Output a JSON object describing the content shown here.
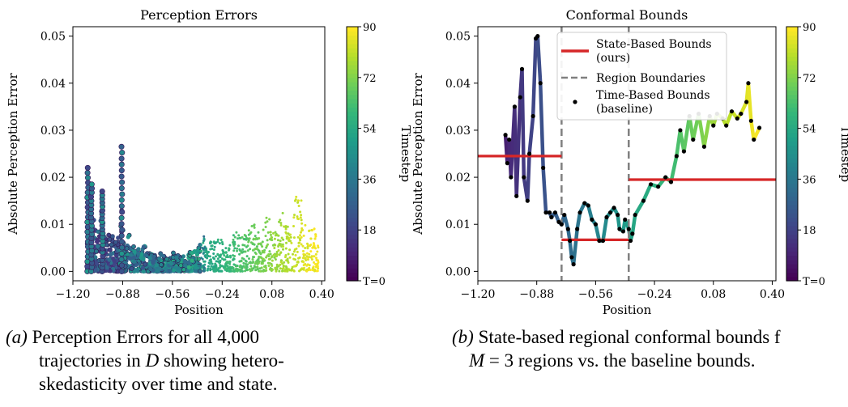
{
  "figure": {
    "panel_a": {
      "title": "Perception Errors",
      "xlabel": "Position",
      "ylabel": "Absolute Perception Error",
      "colorbar": {
        "label": "Timestep",
        "ticks": [
          "T=0",
          "18",
          "36",
          "54",
          "72",
          "90"
        ]
      }
    },
    "panel_b": {
      "title": "Conformal Bounds",
      "xlabel": "Position",
      "ylabel": "Absolute Perception Error",
      "colorbar": {
        "label": "Timestep",
        "ticks": [
          "T=0",
          "18",
          "36",
          "54",
          "72",
          "90"
        ]
      },
      "legend": {
        "state_line1": "State-Based Bounds",
        "state_line2": "(ours)",
        "region": "Region Boundaries",
        "time_line1": "Time-Based Bounds",
        "time_line2": "(baseline)"
      }
    },
    "captions": {
      "a_label": "(a)",
      "a_line1": "Perception Errors for all 4,000",
      "a_line2_pre": "trajectories in ",
      "a_line2_var": "D",
      "a_line2_post": " showing hetero-",
      "a_line3": "skedasticity over time and state.",
      "b_label": "(b)",
      "b_line1": "State-based regional conformal bounds f",
      "b_line2_var": "M",
      "b_line2_post": " = 3 regions vs. the baseline bounds."
    }
  },
  "chart_data": [
    {
      "type": "scatter",
      "title": "Perception Errors",
      "xlabel": "Position",
      "ylabel": "Absolute Perception Error",
      "xticks": [
        "−1.20",
        "−0.88",
        "−0.56",
        "−0.24",
        "0.08",
        "0.40"
      ],
      "yticks": [
        "0.00",
        "0.01",
        "0.02",
        "0.03",
        "0.04",
        "0.05"
      ],
      "xlim": [
        -1.2,
        0.42
      ],
      "ylim": [
        -0.002,
        0.052
      ],
      "colormap": "viridis",
      "color_range": [
        0,
        90
      ],
      "envelope": [
        [
          -1.11,
          0.0
        ],
        [
          -1.105,
          0.022
        ],
        [
          -1.1,
          0.016
        ],
        [
          -1.09,
          0.011
        ],
        [
          -1.08,
          0.0185
        ],
        [
          -1.07,
          0.009
        ],
        [
          -1.06,
          0.013
        ],
        [
          -1.05,
          0.007
        ],
        [
          -1.03,
          0.011
        ],
        [
          -1.01,
          0.017
        ],
        [
          -1.0,
          0.008
        ],
        [
          -0.98,
          0.011
        ],
        [
          -0.96,
          0.006
        ],
        [
          -0.94,
          0.008
        ],
        [
          -0.92,
          0.0065
        ],
        [
          -0.9,
          0.008
        ],
        [
          -0.885,
          0.0265
        ],
        [
          -0.875,
          0.01
        ],
        [
          -0.86,
          0.006
        ],
        [
          -0.84,
          0.008
        ],
        [
          -0.8,
          0.0045
        ],
        [
          -0.74,
          0.0055
        ],
        [
          -0.7,
          0.0035
        ],
        [
          -0.64,
          0.0045
        ],
        [
          -0.6,
          0.0035
        ],
        [
          -0.55,
          0.004
        ],
        [
          -0.5,
          0.003
        ],
        [
          -0.46,
          0.004
        ],
        [
          -0.4,
          0.0045
        ],
        [
          -0.36,
          0.0075
        ],
        [
          -0.3,
          0.006
        ],
        [
          -0.25,
          0.008
        ],
        [
          -0.2,
          0.0055
        ],
        [
          -0.15,
          0.009
        ],
        [
          -0.1,
          0.0075
        ],
        [
          -0.05,
          0.011
        ],
        [
          0.0,
          0.008
        ],
        [
          0.05,
          0.012
        ],
        [
          0.1,
          0.009
        ],
        [
          0.15,
          0.0125
        ],
        [
          0.2,
          0.008
        ],
        [
          0.25,
          0.02
        ],
        [
          0.3,
          0.009
        ],
        [
          0.35,
          0.0105
        ],
        [
          0.38,
          0.007
        ]
      ]
    },
    {
      "type": "line",
      "title": "Conformal Bounds",
      "xlabel": "Position",
      "ylabel": "Absolute Perception Error",
      "xticks": [
        "−1.20",
        "−0.88",
        "−0.56",
        "−0.24",
        "0.08",
        "0.40"
      ],
      "yticks": [
        "0.00",
        "0.01",
        "0.02",
        "0.03",
        "0.04",
        "0.05"
      ],
      "xlim": [
        -1.2,
        0.42
      ],
      "ylim": [
        -0.002,
        0.052
      ],
      "colormap": "viridis",
      "color_range": [
        0,
        90
      ],
      "series": [
        {
          "name": "Time-Based Bounds (baseline)",
          "points": [
            [
              -1.05,
              0.029,
              8
            ],
            [
              -1.04,
              0.023,
              9
            ],
            [
              -1.03,
              0.028,
              10
            ],
            [
              -1.02,
              0.02,
              11
            ],
            [
              -1.0,
              0.035,
              12
            ],
            [
              -0.99,
              0.016,
              13
            ],
            [
              -0.97,
              0.037,
              14
            ],
            [
              -0.96,
              0.043,
              15
            ],
            [
              -0.95,
              0.02,
              16
            ],
            [
              -0.93,
              0.015,
              17
            ],
            [
              -0.92,
              0.025,
              18
            ],
            [
              -0.9,
              0.033,
              19
            ],
            [
              -0.885,
              0.0495,
              20
            ],
            [
              -0.875,
              0.05,
              21
            ],
            [
              -0.86,
              0.04,
              22
            ],
            [
              -0.845,
              0.022,
              23
            ],
            [
              -0.83,
              0.0125,
              24
            ],
            [
              -0.81,
              0.0125,
              25
            ],
            [
              -0.8,
              0.0115,
              26
            ],
            [
              -0.78,
              0.0125,
              27
            ],
            [
              -0.76,
              0.0105,
              28
            ],
            [
              -0.745,
              0.01,
              29
            ],
            [
              -0.73,
              0.012,
              30
            ],
            [
              -0.71,
              0.009,
              31
            ],
            [
              -0.7,
              0.0065,
              32
            ],
            [
              -0.69,
              0.003,
              33
            ],
            [
              -0.68,
              0.0015,
              34
            ],
            [
              -0.66,
              0.009,
              35
            ],
            [
              -0.645,
              0.0125,
              36
            ],
            [
              -0.62,
              0.0145,
              38
            ],
            [
              -0.6,
              0.014,
              39
            ],
            [
              -0.58,
              0.011,
              40
            ],
            [
              -0.56,
              0.01,
              41
            ],
            [
              -0.54,
              0.0065,
              42
            ],
            [
              -0.52,
              0.0065,
              43
            ],
            [
              -0.5,
              0.0115,
              44
            ],
            [
              -0.48,
              0.0125,
              45
            ],
            [
              -0.46,
              0.0135,
              46
            ],
            [
              -0.44,
              0.012,
              47
            ],
            [
              -0.43,
              0.009,
              48
            ],
            [
              -0.41,
              0.0085,
              49
            ],
            [
              -0.4,
              0.011,
              50
            ],
            [
              -0.38,
              0.009,
              51
            ],
            [
              -0.37,
              0.0065,
              52
            ],
            [
              -0.36,
              0.008,
              53
            ],
            [
              -0.345,
              0.012,
              54
            ],
            [
              -0.3,
              0.015,
              55
            ],
            [
              -0.26,
              0.0185,
              57
            ],
            [
              -0.22,
              0.018,
              59
            ],
            [
              -0.18,
              0.02,
              61
            ],
            [
              -0.15,
              0.019,
              62
            ],
            [
              -0.12,
              0.0245,
              64
            ],
            [
              -0.1,
              0.03,
              66
            ],
            [
              -0.08,
              0.0255,
              67
            ],
            [
              -0.05,
              0.033,
              69
            ],
            [
              -0.03,
              0.028,
              70
            ],
            [
              0.0,
              0.0335,
              72
            ],
            [
              0.03,
              0.0265,
              74
            ],
            [
              0.06,
              0.033,
              76
            ],
            [
              0.08,
              0.031,
              77
            ],
            [
              0.1,
              0.0335,
              79
            ],
            [
              0.13,
              0.0325,
              80
            ],
            [
              0.15,
              0.031,
              81
            ],
            [
              0.18,
              0.034,
              83
            ],
            [
              0.21,
              0.0325,
              84
            ],
            [
              0.23,
              0.0335,
              85
            ],
            [
              0.26,
              0.036,
              86
            ],
            [
              0.27,
              0.04,
              87
            ],
            [
              0.285,
              0.032,
              88
            ],
            [
              0.3,
              0.028,
              89
            ],
            [
              0.33,
              0.0305,
              90
            ]
          ]
        },
        {
          "name": "State-Based Bounds (ours)",
          "segments": [
            {
              "x": [
                -1.2,
                -0.745
              ],
              "y": 0.0245
            },
            {
              "x": [
                -0.745,
                -0.38
              ],
              "y": 0.0067
            },
            {
              "x": [
                -0.38,
                0.42
              ],
              "y": 0.0195
            }
          ]
        },
        {
          "name": "Region Boundaries",
          "x": [
            -0.745,
            -0.38
          ]
        }
      ]
    }
  ]
}
